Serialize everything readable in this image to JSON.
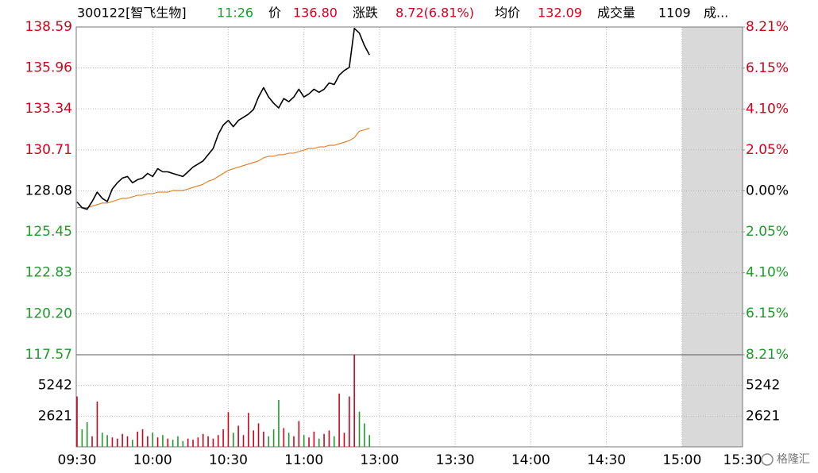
{
  "chart_data": {
    "type": "line",
    "header": [
      {
        "text": "300122[智飞生物]",
        "color": "#000000"
      },
      {
        "text": "11:26",
        "color": "#1e9a2a"
      },
      {
        "text": "价",
        "color": "#000000"
      },
      {
        "text": "136.80",
        "color": "#d0021b"
      },
      {
        "text": "涨跌",
        "color": "#000000"
      },
      {
        "text": "8.72(6.81%)",
        "color": "#d0021b"
      },
      {
        "text": "均价",
        "color": "#000000"
      },
      {
        "text": "132.09",
        "color": "#d0021b"
      },
      {
        "text": "成交量",
        "color": "#000000"
      },
      {
        "text": "1109",
        "color": "#000000"
      },
      {
        "text": "成...",
        "color": "#000000"
      }
    ],
    "x": [
      0,
      2,
      4,
      6,
      8,
      10,
      12,
      14,
      16,
      18,
      20,
      22,
      24,
      26,
      28,
      30,
      32,
      34,
      36,
      38,
      40,
      42,
      44,
      46,
      48,
      50,
      52,
      54,
      56,
      58,
      60,
      62,
      64,
      66,
      68,
      70,
      72,
      74,
      76,
      78,
      80,
      82,
      84,
      86,
      88,
      90,
      92,
      94,
      96,
      98,
      100,
      102,
      104,
      106,
      108,
      110,
      112,
      114,
      116
    ],
    "xlim": [
      0,
      264
    ],
    "xticks": [
      {
        "value": 0,
        "label": "09:30"
      },
      {
        "value": 30,
        "label": "10:00"
      },
      {
        "value": 60,
        "label": "10:30"
      },
      {
        "value": 90,
        "label": "11:00"
      },
      {
        "value": 120,
        "label": "13:00"
      },
      {
        "value": 150,
        "label": "13:30"
      },
      {
        "value": 180,
        "label": "14:00"
      },
      {
        "value": 210,
        "label": "14:30"
      },
      {
        "value": 240,
        "label": "15:00"
      },
      {
        "value": 264,
        "label": "15:30"
      }
    ],
    "series": [
      {
        "color": "#000000",
        "values": [
          127.37,
          127.0,
          126.9,
          127.4,
          128.0,
          127.6,
          127.4,
          128.2,
          128.6,
          128.9,
          129.0,
          128.6,
          128.8,
          128.9,
          129.2,
          129.0,
          129.5,
          129.3,
          129.3,
          129.2,
          129.1,
          129.0,
          129.3,
          129.6,
          129.8,
          130.0,
          130.4,
          130.8,
          131.7,
          132.3,
          132.6,
          132.2,
          132.6,
          132.8,
          133.0,
          133.3,
          134.1,
          134.7,
          134.1,
          133.7,
          133.4,
          134.0,
          133.8,
          134.1,
          134.6,
          134.1,
          134.3,
          134.6,
          134.4,
          134.6,
          135.0,
          134.9,
          135.5,
          135.8,
          136.0,
          138.5,
          138.2,
          137.4,
          136.8
        ]
      },
      {
        "color": "#e07a1f",
        "values": [
          127.0,
          127.0,
          127.0,
          127.1,
          127.2,
          127.3,
          127.3,
          127.4,
          127.5,
          127.6,
          127.6,
          127.7,
          127.8,
          127.8,
          127.9,
          127.9,
          128.0,
          128.0,
          128.0,
          128.1,
          128.1,
          128.1,
          128.2,
          128.3,
          128.4,
          128.5,
          128.7,
          128.8,
          129.0,
          129.2,
          129.4,
          129.5,
          129.6,
          129.7,
          129.8,
          129.9,
          130.0,
          130.2,
          130.3,
          130.3,
          130.4,
          130.4,
          130.5,
          130.5,
          130.6,
          130.7,
          130.8,
          130.8,
          130.9,
          130.9,
          131.0,
          131.0,
          131.1,
          131.2,
          131.3,
          131.5,
          131.9,
          132.0,
          132.09
        ]
      }
    ],
    "ylim": [
      117.57,
      138.59
    ],
    "yticks": [
      {
        "value": 138.59,
        "label": "138.59"
      },
      {
        "value": 135.96,
        "label": "135.96"
      },
      {
        "value": 133.34,
        "label": "133.34"
      },
      {
        "value": 130.71,
        "label": "130.71"
      },
      {
        "value": 128.08,
        "label": "128.08"
      },
      {
        "value": 125.45,
        "label": "125.45"
      },
      {
        "value": 122.83,
        "label": "122.83"
      },
      {
        "value": 120.2,
        "label": "120.20"
      },
      {
        "value": 117.57,
        "label": "117.57"
      }
    ],
    "y2lim": [
      -8.21,
      8.21
    ],
    "y2ticks": [
      {
        "value": 8.21,
        "label": "8.21%"
      },
      {
        "value": 6.15,
        "label": "6.15%"
      },
      {
        "value": 4.1,
        "label": "4.10%"
      },
      {
        "value": 2.05,
        "label": "2.05%"
      },
      {
        "value": 0,
        "label": "0.00%"
      },
      {
        "value": -2.05,
        "label": "2.05%"
      },
      {
        "value": -4.1,
        "label": "4.10%"
      },
      {
        "value": -6.15,
        "label": "6.15%"
      },
      {
        "value": -8.21,
        "label": "8.21%"
      }
    ],
    "up_color": "#d0021b",
    "down_color": "#1e9a2a",
    "flat_color": "#000000",
    "volume": {
      "values": [
        4300,
        1500,
        2100,
        900,
        3860,
        1200,
        1000,
        800,
        700,
        1100,
        900,
        600,
        1300,
        1500,
        900,
        1200,
        800,
        1000,
        700,
        600,
        900,
        500,
        700,
        600,
        800,
        1100,
        900,
        700,
        1000,
        1500,
        2970,
        1200,
        1800,
        1000,
        2900,
        1400,
        2000,
        1300,
        900,
        1500,
        4000,
        1600,
        1200,
        900,
        2200,
        1000,
        800,
        1300,
        700,
        1100,
        1400,
        900,
        4550,
        1200,
        4300,
        7860,
        3000,
        2000,
        1000
      ],
      "ylim": [
        0,
        7863
      ],
      "yticks": [
        2621,
        5242
      ]
    },
    "grid": true,
    "watermark": "格隆汇"
  }
}
